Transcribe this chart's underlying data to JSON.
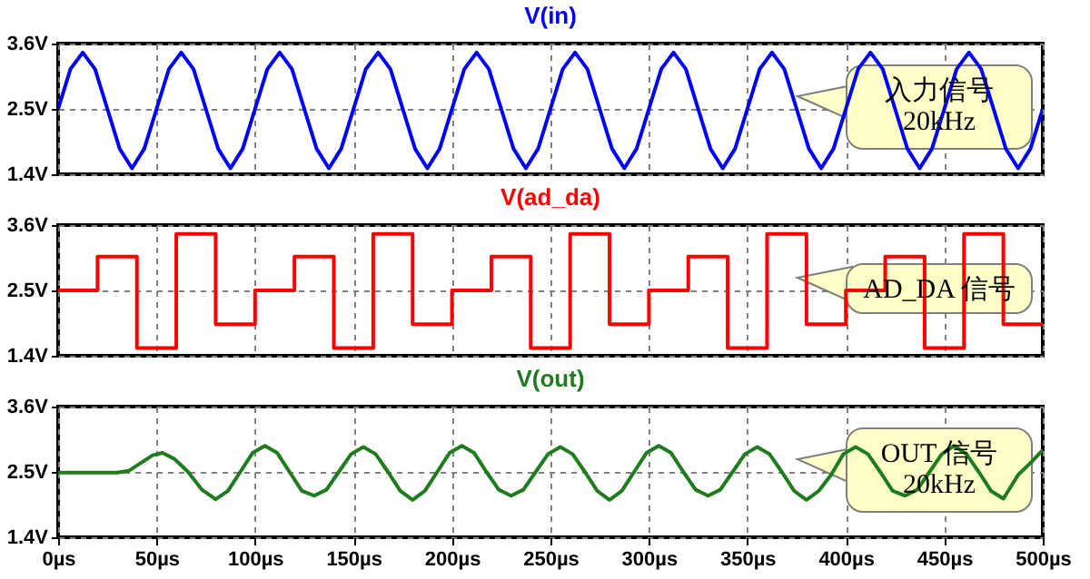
{
  "chart_data": [
    {
      "type": "line",
      "title": "V(in)",
      "xlim": [
        0,
        500
      ],
      "ylim": [
        1.4,
        3.6
      ],
      "grid": true,
      "tick_labels": "y",
      "xticks": [
        0,
        50,
        100,
        150,
        200,
        250,
        300,
        350,
        400,
        450,
        500
      ],
      "yticks": [
        {
          "value": 1.4,
          "label": "1.4V"
        },
        {
          "value": 2.5,
          "label": "2.5V"
        },
        {
          "value": 3.6,
          "label": "3.6V"
        }
      ],
      "x": [
        0,
        6.25,
        12.5,
        18.75,
        25,
        31.25,
        37.5,
        43.75,
        50,
        56.25,
        62.5,
        68.75,
        75,
        81.25,
        87.5,
        93.75,
        100,
        106.25,
        112.5,
        118.75,
        125,
        131.25,
        137.5,
        143.75,
        150,
        156.25,
        162.5,
        168.75,
        175,
        181.25,
        187.5,
        193.75,
        200,
        206.25,
        212.5,
        218.75,
        225,
        231.25,
        237.5,
        243.75,
        250,
        256.25,
        262.5,
        268.75,
        275,
        281.25,
        287.5,
        293.75,
        300,
        306.25,
        312.5,
        318.75,
        325,
        331.25,
        337.5,
        343.75,
        350,
        356.25,
        362.5,
        368.75,
        375,
        381.25,
        387.5,
        393.75,
        400,
        406.25,
        412.5,
        418.75,
        425,
        431.25,
        437.5,
        443.75,
        450,
        456.25,
        462.5,
        468.75,
        475,
        481.25,
        487.5,
        493.75,
        500
      ],
      "series": [
        {
          "color": "#0000ff",
          "values": [
            2.5,
            3.17,
            3.45,
            3.17,
            2.5,
            1.83,
            1.5,
            1.83,
            2.5,
            3.17,
            3.45,
            3.17,
            2.5,
            1.83,
            1.5,
            1.83,
            2.5,
            3.17,
            3.45,
            3.17,
            2.5,
            1.83,
            1.5,
            1.83,
            2.5,
            3.17,
            3.45,
            3.17,
            2.5,
            1.83,
            1.5,
            1.83,
            2.5,
            3.17,
            3.45,
            3.17,
            2.5,
            1.83,
            1.5,
            1.83,
            2.5,
            3.17,
            3.45,
            3.17,
            2.5,
            1.83,
            1.5,
            1.83,
            2.5,
            3.17,
            3.45,
            3.17,
            2.5,
            1.83,
            1.5,
            1.83,
            2.5,
            3.17,
            3.45,
            3.17,
            2.5,
            1.83,
            1.5,
            1.83,
            2.5,
            3.17,
            3.45,
            3.17,
            2.5,
            1.83,
            1.5,
            1.83,
            2.5,
            3.17,
            3.45,
            3.17,
            2.5,
            1.83,
            1.5,
            1.83,
            2.5
          ]
        }
      ],
      "annotations": [
        "入力信号\n20kHz"
      ]
    },
    {
      "type": "step",
      "title": "V(ad_da)",
      "xlim": [
        0,
        500
      ],
      "ylim": [
        1.4,
        3.6
      ],
      "grid": true,
      "tick_labels": "y",
      "xticks": [
        0,
        50,
        100,
        150,
        200,
        250,
        300,
        350,
        400,
        450,
        500
      ],
      "yticks": [
        {
          "value": 1.4,
          "label": "1.4V"
        },
        {
          "value": 2.5,
          "label": "2.5V"
        },
        {
          "value": 3.6,
          "label": "3.6V"
        }
      ],
      "x": [
        0,
        20,
        40,
        60,
        80,
        100,
        120,
        140,
        160,
        180,
        200,
        220,
        240,
        260,
        280,
        300,
        320,
        340,
        360,
        380,
        400,
        420,
        440,
        460,
        480,
        500
      ],
      "series": [
        {
          "color": "#ff0000",
          "values": [
            2.5,
            3.07,
            1.53,
            3.45,
            1.93,
            2.5,
            3.07,
            1.53,
            3.45,
            1.93,
            2.5,
            3.07,
            1.53,
            3.45,
            1.93,
            2.5,
            3.07,
            1.53,
            3.45,
            1.93,
            2.5,
            3.07,
            1.53,
            3.45,
            1.93,
            1.93
          ]
        }
      ],
      "annotations": [
        "AD_DA 信号"
      ]
    },
    {
      "type": "line",
      "title": "V(out)",
      "xlim": [
        0,
        500
      ],
      "ylim": [
        1.4,
        3.6
      ],
      "grid": true,
      "xticks": [
        {
          "value": 0,
          "label": "0µs"
        },
        {
          "value": 50,
          "label": "50µs"
        },
        {
          "value": 100,
          "label": "100µs"
        },
        {
          "value": 150,
          "label": "150µs"
        },
        {
          "value": 200,
          "label": "200µs"
        },
        {
          "value": 250,
          "label": "250µs"
        },
        {
          "value": 300,
          "label": "300µs"
        },
        {
          "value": 350,
          "label": "350µs"
        },
        {
          "value": 400,
          "label": "400µs"
        },
        {
          "value": 450,
          "label": "450µs"
        },
        {
          "value": 500,
          "label": "500µs"
        }
      ],
      "yticks": [
        {
          "value": 1.4,
          "label": "1.4V"
        },
        {
          "value": 2.5,
          "label": "2.5V"
        },
        {
          "value": 3.6,
          "label": "3.6V"
        }
      ],
      "x": [
        0,
        30,
        36,
        42,
        48,
        53,
        59,
        66,
        73,
        80,
        86.25,
        92.5,
        98.75,
        105,
        111.25,
        117.5,
        123.75,
        130,
        136.25,
        142.5,
        148.75,
        155,
        161.25,
        167.5,
        173.75,
        180,
        186.25,
        192.5,
        198.75,
        205,
        211.25,
        217.5,
        223.75,
        230,
        236.25,
        242.5,
        248.75,
        255,
        261.25,
        267.5,
        273.75,
        280,
        286.25,
        292.5,
        298.75,
        305,
        311.25,
        317.5,
        323.75,
        330,
        336.25,
        342.5,
        348.75,
        355,
        361.25,
        367.5,
        373.75,
        380,
        386.25,
        392.5,
        398.75,
        405,
        411.25,
        417.5,
        423.75,
        430,
        436.25,
        442.5,
        448.75,
        455,
        461.25,
        467.5,
        473.75,
        480,
        487.5,
        493.75,
        500
      ],
      "series": [
        {
          "color": "#1e7b1e",
          "values": [
            2.49,
            2.49,
            2.52,
            2.65,
            2.78,
            2.82,
            2.72,
            2.5,
            2.2,
            2.04,
            2.18,
            2.5,
            2.82,
            2.94,
            2.82,
            2.5,
            2.18,
            2.1,
            2.2,
            2.5,
            2.8,
            2.92,
            2.8,
            2.5,
            2.18,
            2.03,
            2.18,
            2.5,
            2.82,
            2.94,
            2.82,
            2.5,
            2.2,
            2.1,
            2.2,
            2.5,
            2.8,
            2.92,
            2.8,
            2.5,
            2.18,
            2.03,
            2.18,
            2.5,
            2.82,
            2.94,
            2.82,
            2.5,
            2.2,
            2.1,
            2.2,
            2.5,
            2.8,
            2.92,
            2.8,
            2.5,
            2.18,
            2.03,
            2.18,
            2.45,
            2.8,
            2.92,
            2.8,
            2.5,
            2.18,
            2.1,
            2.2,
            2.5,
            2.8,
            2.94,
            2.8,
            2.5,
            2.18,
            2.05,
            2.45,
            2.65,
            2.87
          ]
        }
      ],
      "annotations": [
        "OUT 信号\n20kHz"
      ]
    }
  ]
}
